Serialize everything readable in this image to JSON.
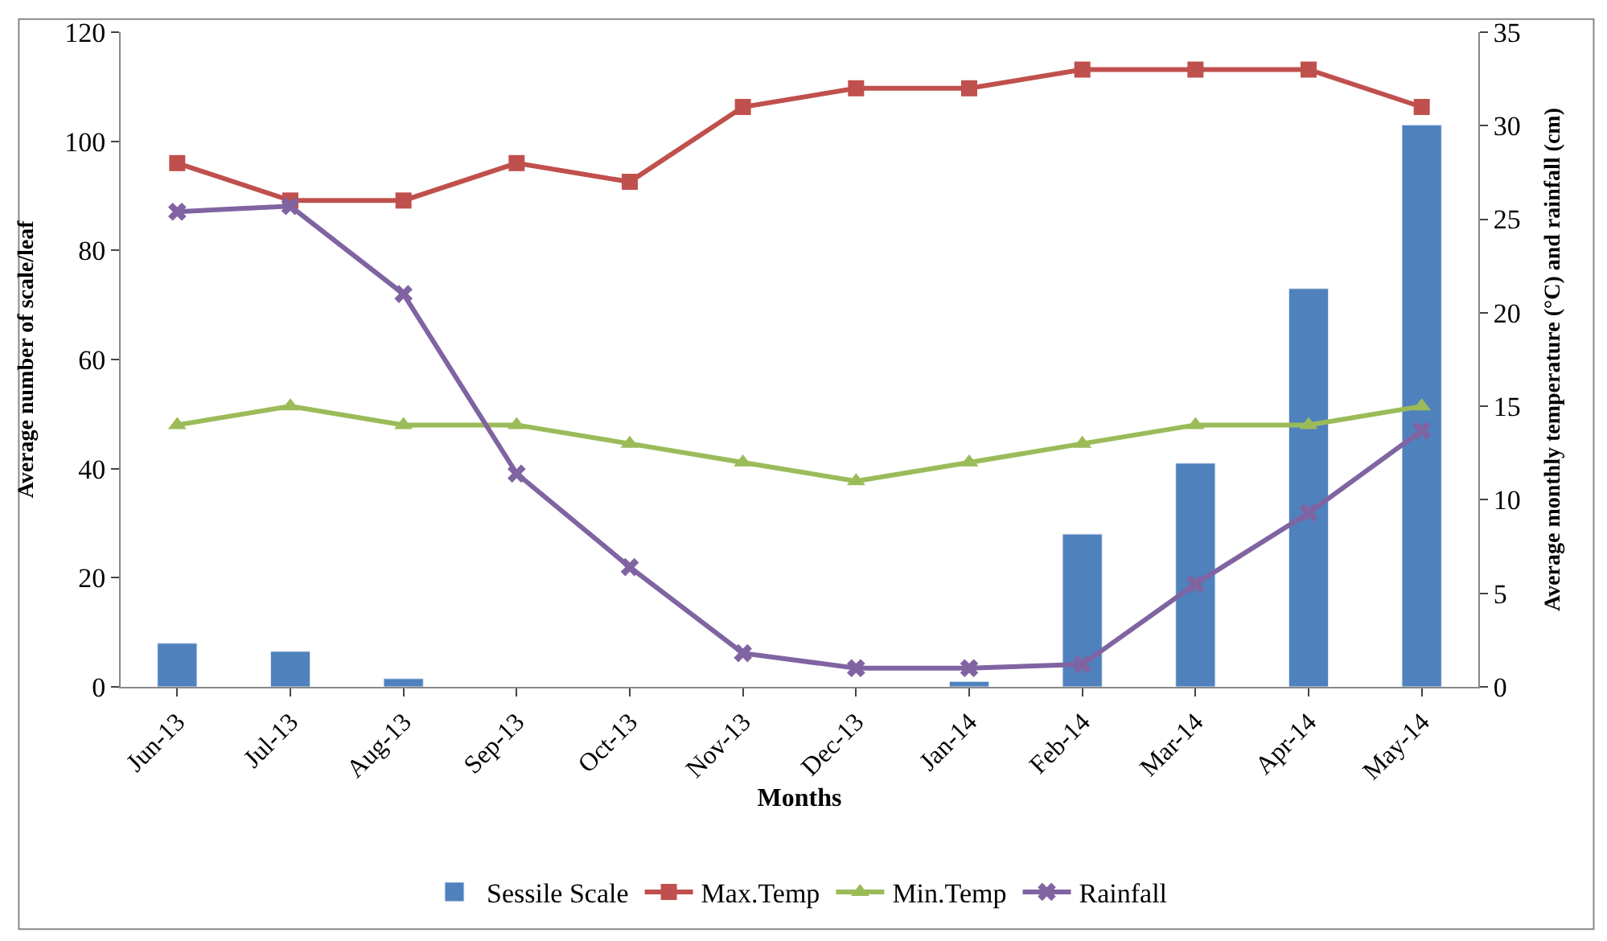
{
  "chart_data": {
    "type": "bar",
    "xlabel": "Months",
    "ylabel": "Average number of scale/leaf",
    "y2label": "Average monthly temperature (°C) and rainfall (cm)",
    "categories": [
      "Jun-13",
      "Jul-13",
      "Aug-13",
      "Sep-13",
      "Oct-13",
      "Nov-13",
      "Dec-13",
      "Jan-14",
      "Feb-14",
      "Mar-14",
      "Apr-14",
      "May-14"
    ],
    "series": [
      {
        "name": "Sessile Scale",
        "color": "#4f81bd",
        "values": [
          8,
          6.5,
          1.5,
          null,
          null,
          null,
          null,
          1,
          28,
          41,
          73,
          103
        ]
      },
      {
        "name": "Max.Temp",
        "type": "line",
        "axis": "y2",
        "marker": "square",
        "color": "#c0504d",
        "values": [
          28,
          26,
          26,
          28,
          27,
          31,
          32,
          32,
          33,
          33,
          33,
          31
        ]
      },
      {
        "name": "Min.Temp",
        "type": "line",
        "axis": "y2",
        "marker": "triangle",
        "color": "#9bbb59",
        "values": [
          14,
          15,
          14,
          14,
          13,
          12,
          11,
          12,
          13,
          14,
          14,
          15
        ]
      },
      {
        "name": "Rainfall",
        "type": "line",
        "axis": "y2",
        "marker": "cross",
        "color": "#8064a2",
        "values": [
          25.4,
          25.7,
          21,
          11.4,
          6.4,
          1.8,
          1,
          1,
          1.2,
          5.5,
          9.3,
          13.7
        ]
      }
    ],
    "ylim": [
      0,
      120
    ],
    "yticks": [
      0,
      20,
      40,
      60,
      80,
      100,
      120
    ],
    "y2lim": [
      0,
      35
    ],
    "y2ticks": [
      0,
      5,
      10,
      15,
      20,
      25,
      30,
      35
    ],
    "legend": "bottom"
  }
}
